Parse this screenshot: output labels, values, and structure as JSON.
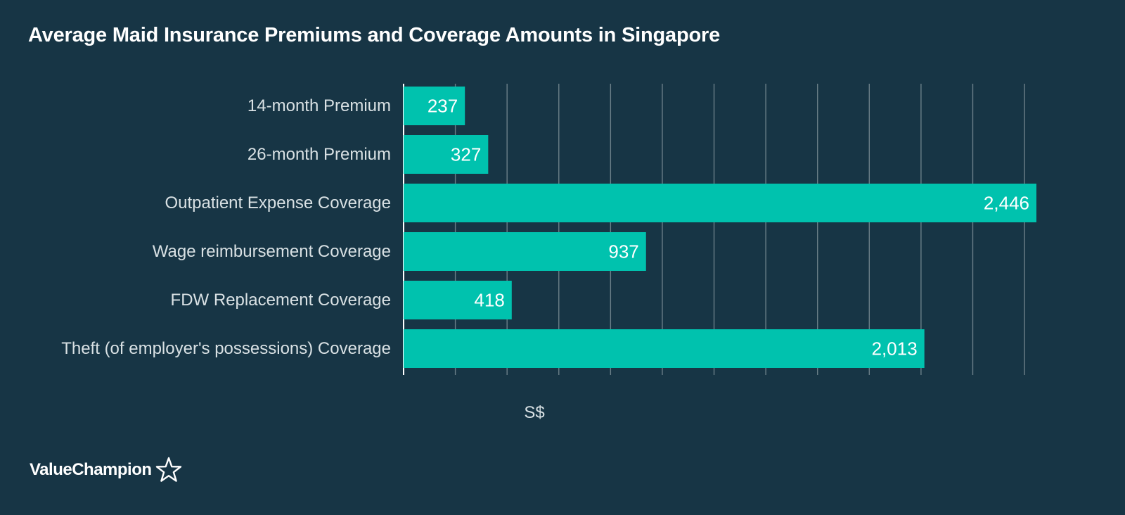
{
  "chart_data": {
    "type": "bar",
    "orientation": "horizontal",
    "title": "Average Maid Insurance Premiums and Coverage Amounts in Singapore",
    "xlabel": "S$",
    "ylabel": "",
    "categories": [
      "14-month Premium",
      "26-month Premium",
      "Outpatient Expense Coverage",
      "Wage reimbursement Coverage",
      "FDW Replacement Coverage",
      "Theft (of employer's possessions) Coverage"
    ],
    "values": [
      237,
      327,
      2446,
      937,
      418,
      2013
    ],
    "value_labels": [
      "237",
      "327",
      "2,446",
      "937",
      "418",
      "2,013"
    ],
    "xlim": [
      0,
      2400
    ],
    "grid": true,
    "legend": "none"
  },
  "brand": {
    "name": "ValueChampion"
  },
  "colors": {
    "background": "#173545",
    "bar": "#00c2ae",
    "grid": "#6b7f88",
    "axis": "#ffffff",
    "category_text": "#d9e1e4",
    "value_text": "#ffffff",
    "title_text": "#ffffff"
  },
  "icons": {
    "brand": "star-outline-icon"
  }
}
